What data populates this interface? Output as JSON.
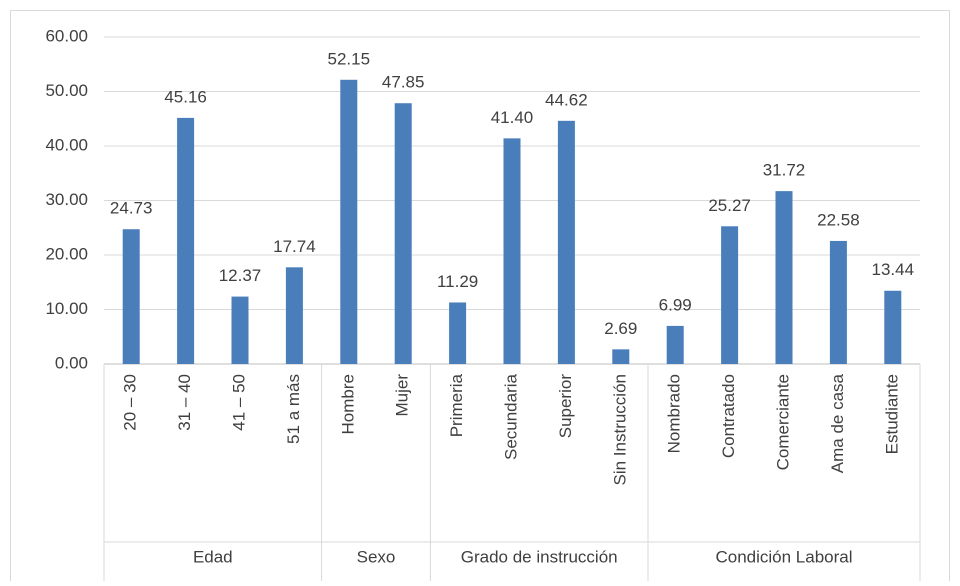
{
  "chart_data": {
    "type": "bar",
    "color": "#4a7ebb",
    "grid": true,
    "ylim": [
      0,
      60
    ],
    "yticks": [
      {
        "value": 0,
        "label": "0.00"
      },
      {
        "value": 10,
        "label": "10.00"
      },
      {
        "value": 20,
        "label": "20.00"
      },
      {
        "value": 30,
        "label": "30.00"
      },
      {
        "value": 40,
        "label": "40.00"
      },
      {
        "value": 50,
        "label": "50.00"
      },
      {
        "value": 60,
        "label": "60.00"
      }
    ],
    "groups": [
      {
        "name": "Edad",
        "categories": [
          "20 – 30",
          "31 – 40",
          "41 – 50",
          "51 a más"
        ],
        "values": [
          24.73,
          45.16,
          12.37,
          17.74
        ]
      },
      {
        "name": "Sexo",
        "categories": [
          "Hombre",
          "Mujer"
        ],
        "values": [
          52.15,
          47.85
        ]
      },
      {
        "name": "Grado de instrucción",
        "categories": [
          "Primeria",
          "Secundaria",
          "Superior",
          "Sin Instrucción"
        ],
        "values": [
          11.29,
          41.4,
          44.62,
          2.69
        ],
        "value_labels": [
          "11.29",
          "41.40",
          "44.62",
          "2.69"
        ]
      },
      {
        "name": "Condición Laboral",
        "categories": [
          "Nombrado",
          "Contratado",
          "Comerciante",
          "Ama de casa",
          "Estudiante"
        ],
        "values": [
          6.99,
          25.27,
          31.72,
          22.58,
          13.44
        ]
      }
    ]
  }
}
